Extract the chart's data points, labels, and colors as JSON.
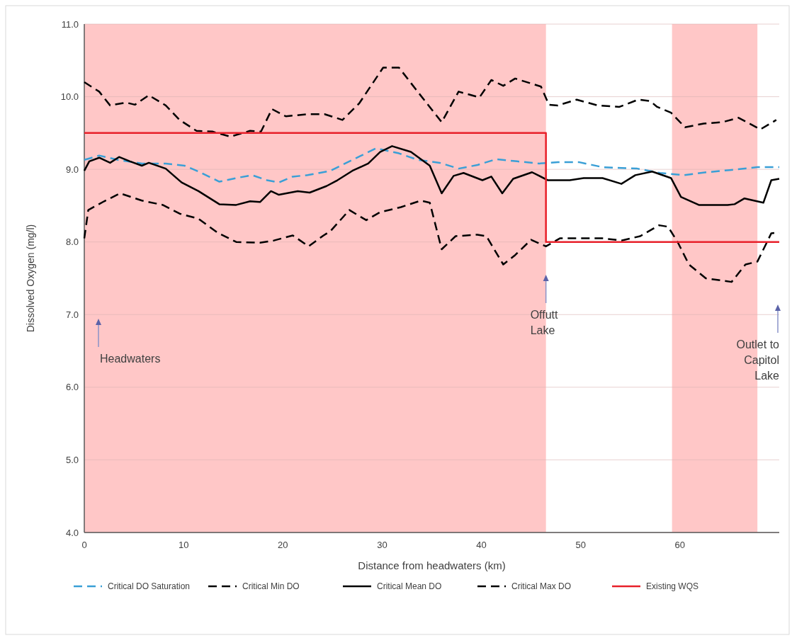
{
  "chart_data": {
    "type": "line",
    "xlabel": "Distance from headwaters (km)",
    "ylabel": "Dissolved Oxygen (mg/l)",
    "xlim": [
      0,
      70
    ],
    "xticks": [
      0,
      10,
      20,
      30,
      40,
      50,
      60
    ],
    "ylim": [
      4,
      11
    ],
    "yticks": [
      {
        "value": 4,
        "label": "4.0"
      },
      {
        "value": 5,
        "label": "5.0"
      },
      {
        "value": 6,
        "label": "6.0"
      },
      {
        "value": 7,
        "label": "7.0"
      },
      {
        "value": 8,
        "label": "8.0"
      },
      {
        "value": 9,
        "label": "9.0"
      },
      {
        "value": 10,
        "label": "10.0"
      },
      {
        "value": 11,
        "label": "11.0"
      }
    ],
    "grid": "y",
    "legend": "bottom",
    "bands": [
      {
        "axis": "x",
        "from": 0,
        "to": 46.5,
        "color": "#ffc7c7"
      },
      {
        "axis": "x",
        "from": 59.2,
        "to": 67.8,
        "color": "#ffc7c7"
      }
    ],
    "annotations": [
      "Headwaters",
      "Offutt Lake",
      "Outlet to Capitol Lake"
    ],
    "series": [
      {
        "name": "Critical DO Saturation",
        "color": "#3a9fd6",
        "line_style": "dashed",
        "x": [
          0,
          1.5,
          3.4,
          5.8,
          8.2,
          10.1,
          11.5,
          13.6,
          15.3,
          16.9,
          18.4,
          19.6,
          21,
          22.5,
          24.8,
          27,
          29.4,
          31.7,
          33.6,
          35.8,
          37.7,
          39.6,
          41.5,
          43.6,
          45.8,
          47.7,
          49.8,
          52.2,
          55.7,
          58,
          60.4,
          62.7,
          65,
          67.8,
          70
        ],
        "values": [
          9.13,
          9.19,
          9.13,
          9.08,
          9.08,
          9.05,
          8.97,
          8.83,
          8.88,
          8.92,
          8.85,
          8.82,
          8.9,
          8.92,
          8.98,
          9.13,
          9.29,
          9.22,
          9.13,
          9.09,
          9.01,
          9.06,
          9.14,
          9.11,
          9.08,
          9.1,
          9.1,
          9.03,
          9.01,
          8.95,
          8.92,
          8.96,
          8.99,
          9.03,
          9.03
        ]
      },
      {
        "name": "Critical Min DO",
        "color": "#000000",
        "line_style": "dashed",
        "x": [
          0,
          0.4,
          2,
          3.6,
          5.8,
          7.9,
          9.6,
          11.5,
          13.4,
          15.3,
          17.7,
          19.1,
          21,
          22.6,
          24.1,
          24.8,
          26.7,
          28.4,
          29.8,
          31.9,
          33.9,
          34.8,
          36,
          37.4,
          39.6,
          40.5,
          42.2,
          43.4,
          45,
          46.5,
          47.9,
          49.8,
          52.2,
          54.1,
          56,
          57.9,
          58.8,
          59.8,
          60.9,
          62.6,
          65.2,
          66.6,
          67.8,
          69.2,
          70
        ],
        "values": [
          8.05,
          8.44,
          8.56,
          8.67,
          8.57,
          8.51,
          8.39,
          8.32,
          8.13,
          8,
          7.99,
          8.02,
          8.09,
          7.94,
          8.09,
          8.15,
          8.44,
          8.3,
          8.41,
          8.48,
          8.57,
          8.54,
          7.9,
          8.08,
          8.1,
          8.08,
          7.69,
          7.82,
          8.03,
          7.94,
          8.05,
          8.05,
          8.05,
          8.02,
          8.08,
          8.23,
          8.21,
          7.99,
          7.69,
          7.5,
          7.45,
          7.69,
          7.73,
          8.12,
          8.13
        ]
      },
      {
        "name": "Critical Mean DO",
        "color": "#000000",
        "line_style": "solid",
        "x": [
          0,
          0.5,
          1.5,
          2.6,
          3.5,
          4.6,
          5.8,
          6.5,
          8.2,
          9.8,
          11.5,
          13.6,
          15.3,
          16.7,
          17.7,
          18.8,
          19.6,
          21.5,
          22.7,
          24.4,
          25.5,
          27,
          28.6,
          29.8,
          31,
          32.9,
          34.8,
          36,
          37.2,
          38.2,
          40.1,
          41,
          42.1,
          43.2,
          45.1,
          46.7,
          48.9,
          50.3,
          52.2,
          54.1,
          55.5,
          57.2,
          59.1,
          60.1,
          61.9,
          64.8,
          65.5,
          66.5,
          68.4,
          69.2,
          70
        ],
        "values": [
          8.98,
          9.11,
          9.16,
          9.09,
          9.17,
          9.11,
          9.05,
          9.09,
          9.01,
          8.82,
          8.7,
          8.52,
          8.51,
          8.56,
          8.55,
          8.7,
          8.65,
          8.7,
          8.68,
          8.77,
          8.85,
          8.98,
          9.08,
          9.24,
          9.32,
          9.24,
          9.05,
          8.67,
          8.91,
          8.95,
          8.85,
          8.9,
          8.67,
          8.87,
          8.96,
          8.85,
          8.85,
          8.88,
          8.88,
          8.8,
          8.92,
          8.97,
          8.88,
          8.62,
          8.51,
          8.51,
          8.52,
          8.6,
          8.54,
          8.85,
          8.87
        ]
      },
      {
        "name": "Critical Max DO",
        "color": "#000000",
        "line_style": "dashed",
        "x": [
          0,
          1.5,
          2.6,
          4.2,
          5.1,
          6.5,
          8.2,
          9.6,
          11.3,
          12.9,
          14.7,
          16.7,
          17.8,
          18.9,
          20.3,
          22.5,
          24.2,
          26,
          27.7,
          30.1,
          31.7,
          33.4,
          36,
          37.7,
          39.8,
          41,
          42.2,
          43.4,
          46,
          46.8,
          47.7,
          49.6,
          51.7,
          53.9,
          55.8,
          57,
          57.7,
          59.1,
          60.5,
          62.4,
          64.3,
          65.9,
          68.1,
          69.7
        ],
        "values": [
          10.2,
          10.07,
          9.88,
          9.92,
          9.89,
          10.02,
          9.88,
          9.68,
          9.53,
          9.52,
          9.45,
          9.53,
          9.52,
          9.83,
          9.73,
          9.76,
          9.76,
          9.68,
          9.91,
          10.4,
          10.4,
          10.1,
          9.65,
          10.07,
          9.99,
          10.23,
          10.15,
          10.25,
          10.14,
          9.89,
          9.88,
          9.96,
          9.88,
          9.86,
          9.96,
          9.94,
          9.86,
          9.78,
          9.58,
          9.63,
          9.65,
          9.71,
          9.55,
          9.68
        ]
      },
      {
        "name": "Existing WQS",
        "color": "#e8202a",
        "line_style": "solid",
        "x": [
          0,
          46.5,
          46.5,
          70
        ],
        "values": [
          9.5,
          9.5,
          8,
          8
        ]
      }
    ]
  }
}
